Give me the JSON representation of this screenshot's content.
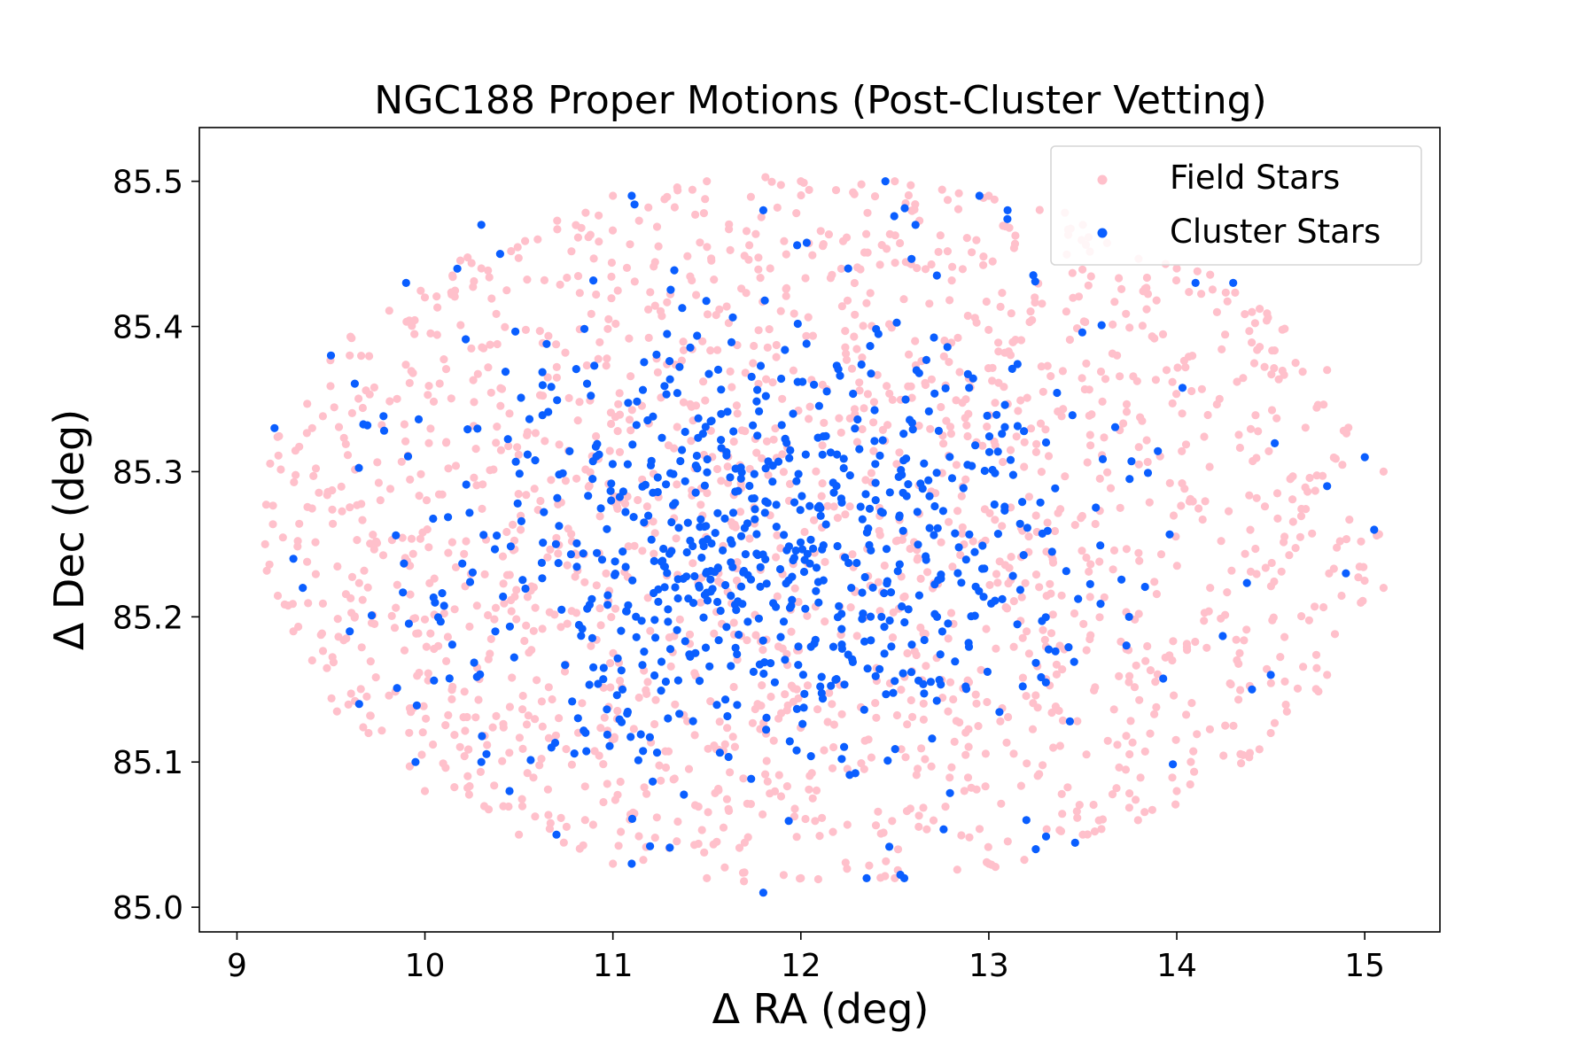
{
  "chart_data": {
    "type": "scatter",
    "title": "NGC188 Proper Motions (Post-Cluster Vetting)",
    "xlabel": "Δ RA (deg)",
    "ylabel": "Δ Dec (deg)",
    "xlim": [
      8.8,
      15.4
    ],
    "ylim": [
      84.983,
      85.537
    ],
    "xticks": [
      "9",
      "10",
      "11",
      "12",
      "13",
      "14",
      "15"
    ],
    "yticks": [
      "85.0",
      "85.1",
      "85.2",
      "85.3",
      "85.4",
      "85.5"
    ],
    "grid": false,
    "legend_position": "top-right",
    "field_distribution": {
      "shape": "ellipse",
      "center": [
        12.1,
        85.26
      ],
      "semi_axes": [
        3.0,
        0.245
      ],
      "count": 1800
    },
    "cluster_distribution": {
      "shape": "concentrated-gaussian",
      "center": [
        11.9,
        85.24
      ],
      "spread": [
        0.9,
        0.085
      ],
      "count": 800
    },
    "series": [
      {
        "name": "Field Stars",
        "color": "#ffc0cb",
        "points": [
          [
            9.15,
            85.25
          ],
          [
            9.3,
            85.19
          ],
          [
            9.4,
            85.33
          ],
          [
            9.6,
            85.38
          ],
          [
            10.0,
            85.42
          ],
          [
            10.3,
            85.44
          ],
          [
            10.6,
            85.46
          ],
          [
            11.0,
            85.49
          ],
          [
            11.5,
            85.5
          ],
          [
            12.0,
            85.5
          ],
          [
            12.5,
            85.5
          ],
          [
            13.0,
            85.49
          ],
          [
            13.5,
            85.47
          ],
          [
            14.0,
            85.44
          ],
          [
            14.4,
            85.41
          ],
          [
            14.8,
            85.37
          ],
          [
            15.1,
            85.3
          ],
          [
            15.1,
            85.22
          ],
          [
            14.8,
            85.16
          ],
          [
            14.5,
            85.12
          ],
          [
            14.0,
            85.08
          ],
          [
            13.5,
            85.05
          ],
          [
            13.0,
            85.03
          ],
          [
            12.5,
            85.02
          ],
          [
            12.0,
            85.02
          ],
          [
            11.5,
            85.02
          ],
          [
            11.0,
            85.03
          ],
          [
            10.5,
            85.05
          ],
          [
            10.0,
            85.08
          ],
          [
            9.7,
            85.12
          ],
          [
            9.4,
            85.17
          ]
        ]
      },
      {
        "name": "Cluster Stars",
        "color": "#0a5eff",
        "points": [
          [
            9.2,
            85.33
          ],
          [
            9.3,
            85.24
          ],
          [
            9.35,
            85.22
          ],
          [
            9.5,
            85.38
          ],
          [
            9.6,
            85.19
          ],
          [
            9.65,
            85.14
          ],
          [
            9.9,
            85.43
          ],
          [
            9.95,
            85.1
          ],
          [
            10.3,
            85.47
          ],
          [
            10.4,
            85.45
          ],
          [
            11.1,
            85.49
          ],
          [
            11.8,
            85.48
          ],
          [
            12.45,
            85.5
          ],
          [
            12.95,
            85.49
          ],
          [
            13.1,
            85.48
          ],
          [
            14.3,
            85.43
          ],
          [
            14.1,
            85.43
          ],
          [
            14.8,
            85.29
          ],
          [
            15.0,
            85.31
          ],
          [
            15.05,
            85.26
          ],
          [
            14.9,
            85.23
          ],
          [
            14.5,
            85.16
          ],
          [
            14.4,
            85.15
          ],
          [
            13.2,
            85.06
          ],
          [
            13.25,
            85.04
          ],
          [
            12.55,
            85.02
          ],
          [
            12.35,
            85.02
          ],
          [
            11.8,
            85.01
          ],
          [
            11.1,
            85.03
          ],
          [
            10.7,
            85.05
          ],
          [
            10.45,
            85.08
          ],
          [
            10.3,
            85.1
          ]
        ]
      }
    ]
  }
}
